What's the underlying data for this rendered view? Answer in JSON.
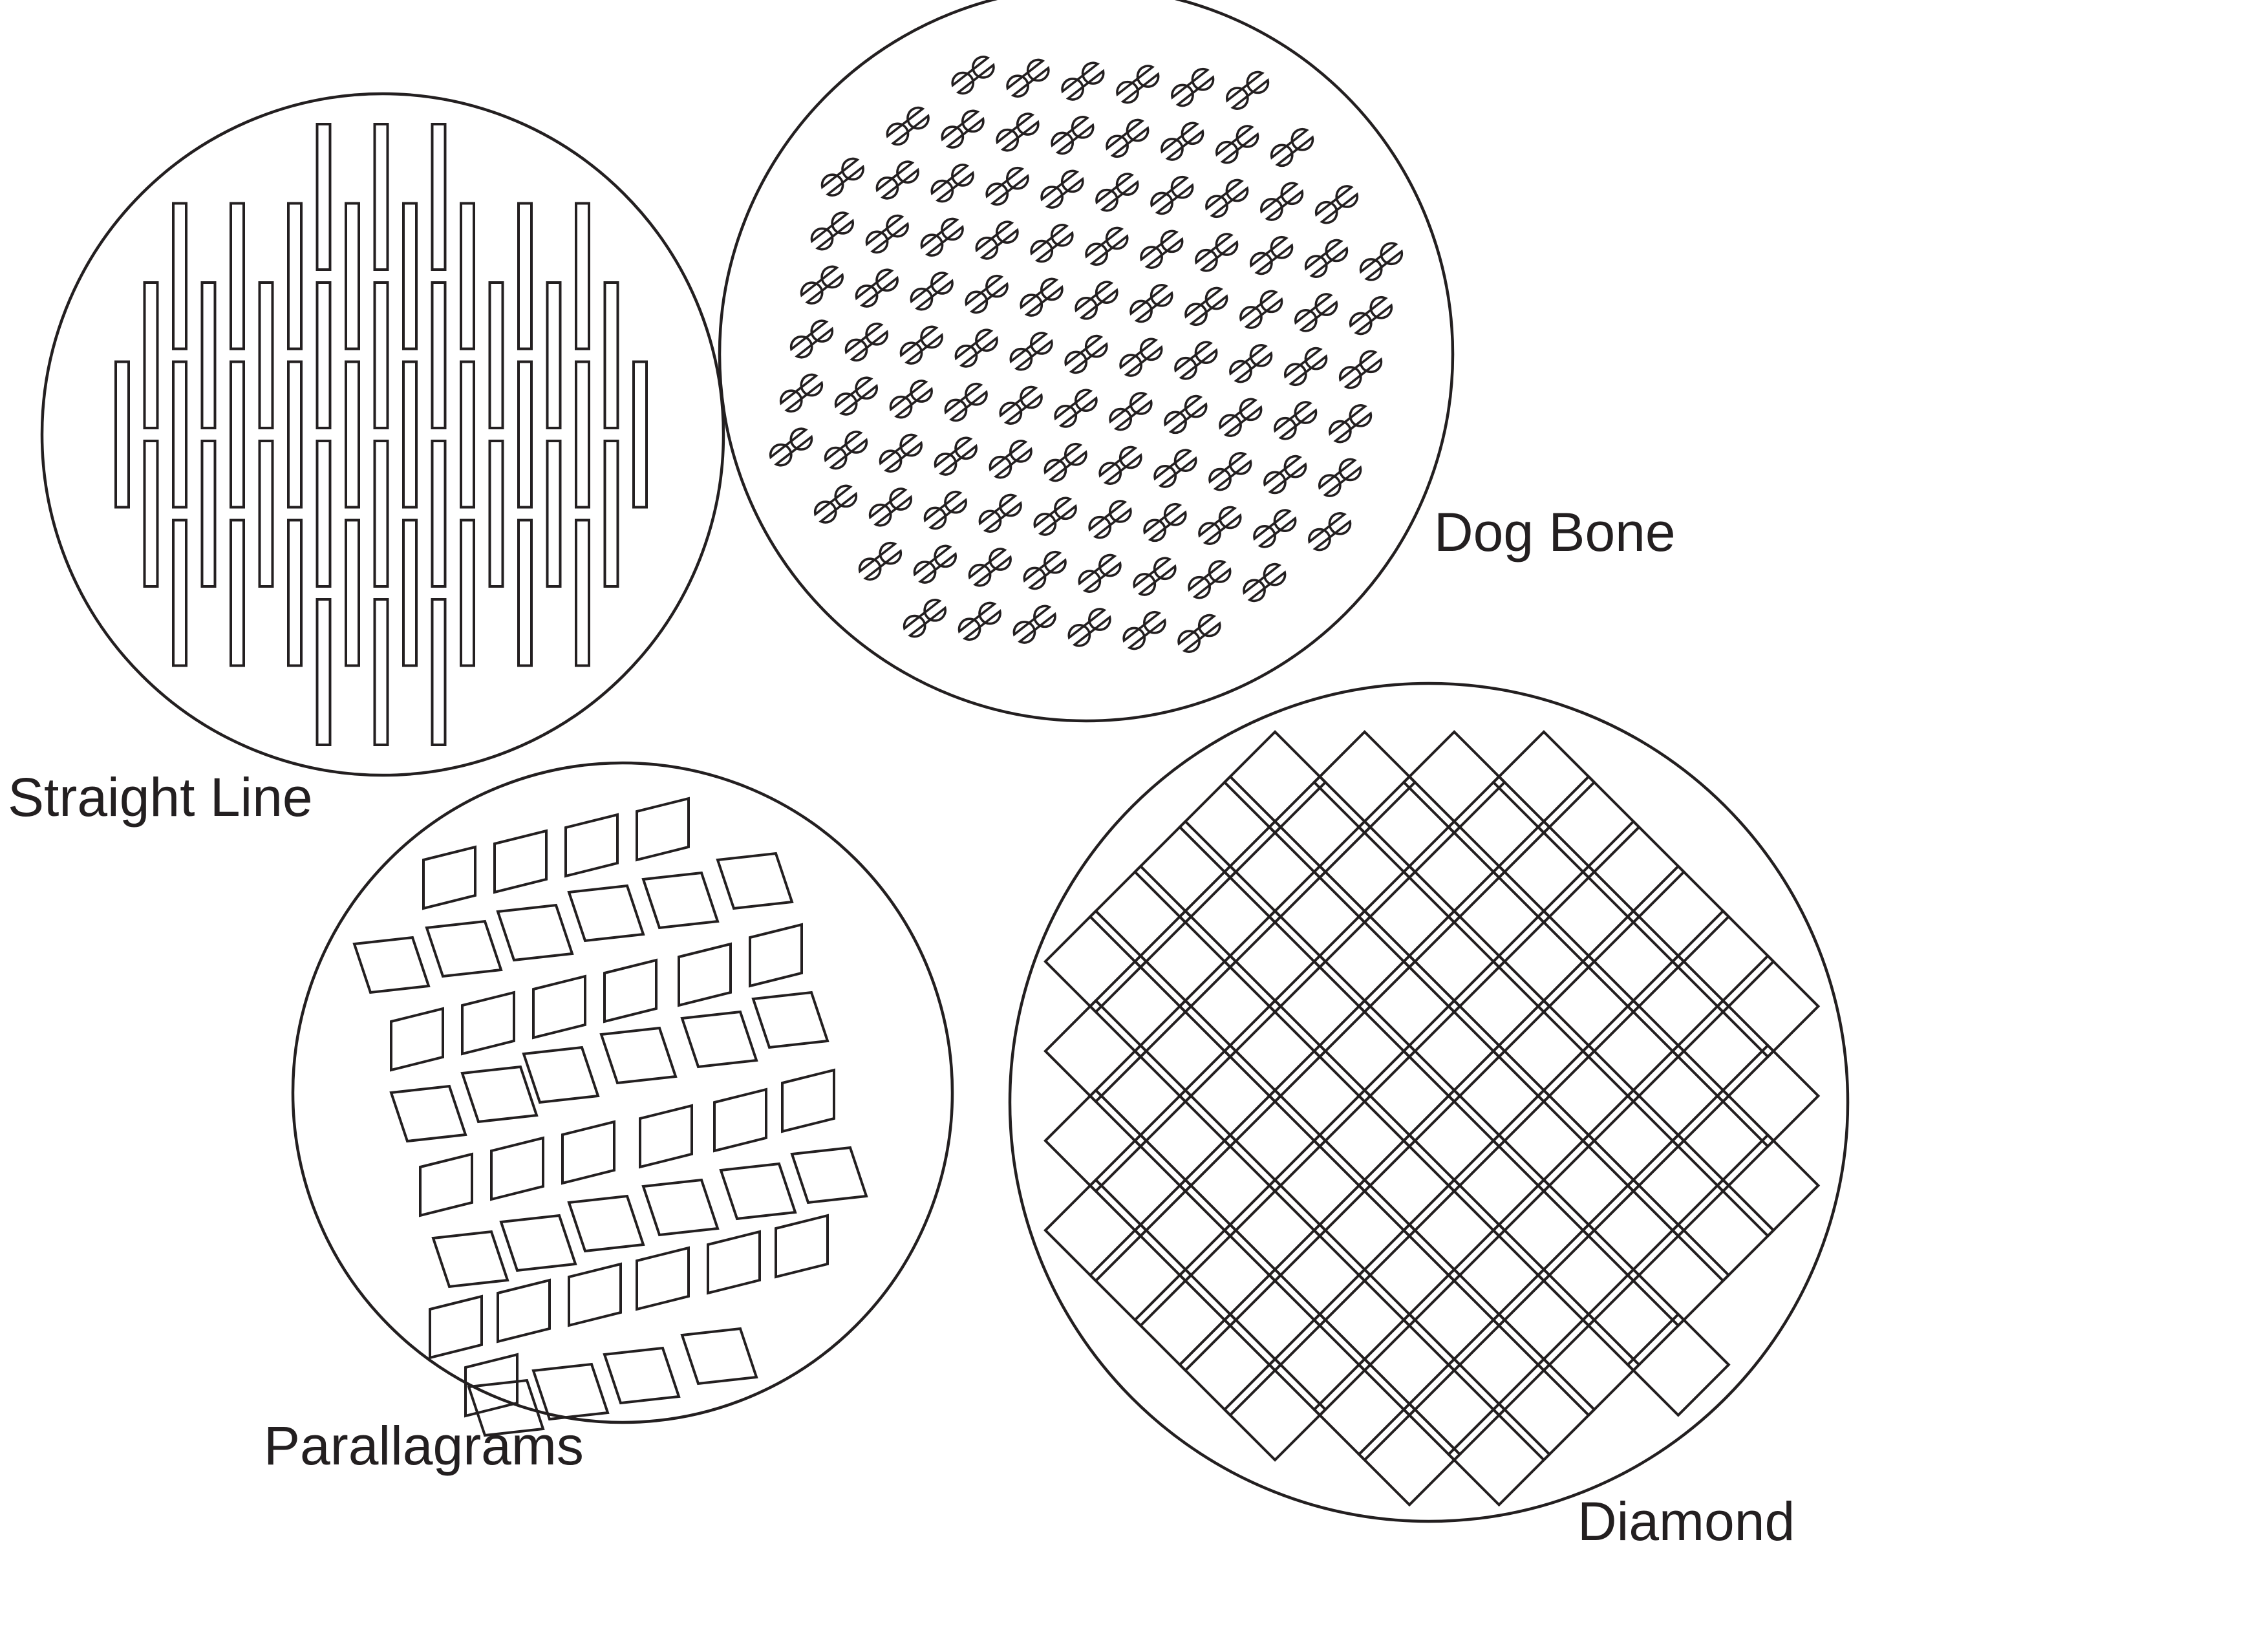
{
  "figure": {
    "panels": [
      {
        "id": "straight-line",
        "label": "Straight Line",
        "pattern": "straight-line slits"
      },
      {
        "id": "dog-bone",
        "label": "Dog Bone",
        "pattern": "dog-bone cutouts"
      },
      {
        "id": "parallelograms",
        "label": "Parallagrams",
        "pattern": "parallelogram cutouts"
      },
      {
        "id": "diamond",
        "label": "Diamond",
        "pattern": "diamond cutouts"
      }
    ],
    "colors": {
      "line": "#231f20",
      "background": "#ffffff"
    }
  }
}
